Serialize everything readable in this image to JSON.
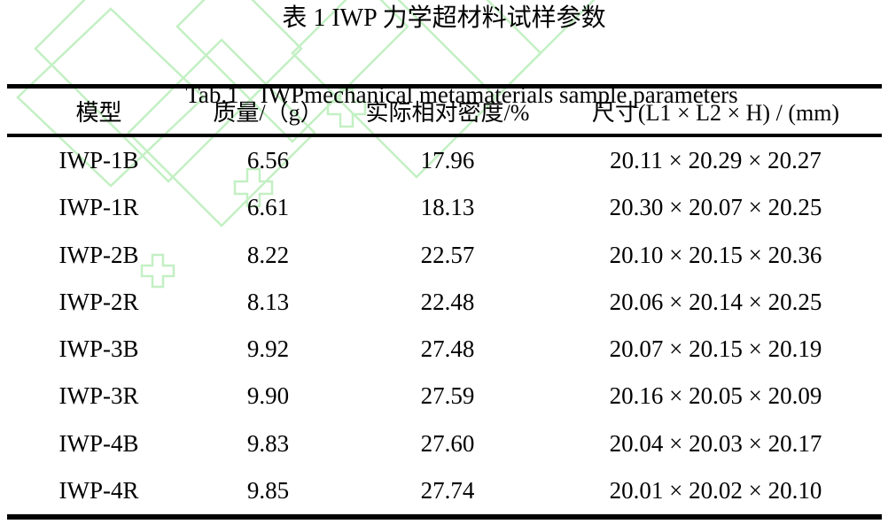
{
  "titles": {
    "zh": "表 1 IWP 力学超材料试样参数",
    "en_label": "Tab.1",
    "en_text": "IWPmechanical metamaterials sample parameters"
  },
  "table": {
    "headers": [
      "模型",
      "质量/（g）",
      "实际相对密度/%",
      "尺寸(L1 × L2 × H) / (mm)"
    ],
    "rows": [
      [
        "IWP-1B",
        "6.56",
        "17.96",
        "20.11 × 20.29 × 20.27"
      ],
      [
        "IWP-1R",
        "6.61",
        "18.13",
        "20.30 × 20.07 × 20.25"
      ],
      [
        "IWP-2B",
        "8.22",
        "22.57",
        "20.10 × 20.15 × 20.36"
      ],
      [
        "IWP-2R",
        "8.13",
        "22.48",
        "20.06 × 20.14 × 20.25"
      ],
      [
        "IWP-3B",
        "9.92",
        "27.48",
        "20.07 × 20.15 × 20.19"
      ],
      [
        "IWP-3R",
        "9.90",
        "27.59",
        "20.16 × 20.05 × 20.09"
      ],
      [
        "IWP-4B",
        "9.83",
        "27.60",
        "20.04 × 20.03 × 20.17"
      ],
      [
        "IWP-4R",
        "9.85",
        "27.74",
        "20.01 × 20.02 × 20.10"
      ]
    ]
  },
  "colors": {
    "text": "#000000",
    "rule": "#000000",
    "watermark_green": "#c3f0c3",
    "background": "#ffffff"
  },
  "icons": {
    "watermark": "green-diamond-lattice-watermark"
  }
}
